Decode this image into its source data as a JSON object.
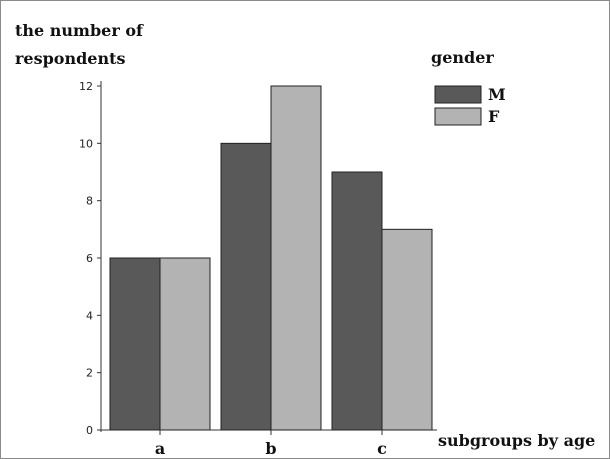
{
  "chart_data": {
    "type": "bar",
    "ylabel_line1": "the number of",
    "ylabel_line2": "respondents",
    "xlabel": "subgroups by age",
    "categories": [
      "a",
      "b",
      "c"
    ],
    "legend_title": "gender",
    "legend_position": "top-right",
    "series": [
      {
        "name": "M",
        "color": "#595959",
        "values": [
          6,
          10,
          9
        ]
      },
      {
        "name": "F",
        "color": "#b3b3b3",
        "values": [
          6,
          12,
          7
        ]
      }
    ],
    "ylim": [
      0,
      12
    ],
    "yticks": [
      0,
      2,
      4,
      6,
      8,
      10,
      12
    ],
    "grid": false
  }
}
